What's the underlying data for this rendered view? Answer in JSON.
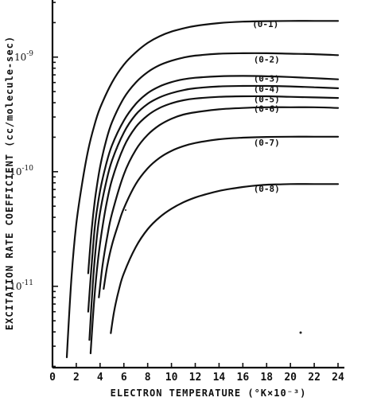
{
  "chart_data": {
    "type": "line",
    "title": "",
    "xlabel": "ELECTRON TEMPERATURE (°K×10⁻³)",
    "ylabel": "EXCITATION RATE COEFFICIENT (cc/molecule-sec)",
    "x_scale": "linear",
    "y_scale": "log",
    "xlim": [
      0,
      24
    ],
    "ylim": [
      1.95e-12,
      3.15e-09
    ],
    "grid": false,
    "x_ticks": [
      0,
      2,
      4,
      6,
      8,
      10,
      12,
      14,
      16,
      18,
      20,
      22,
      24
    ],
    "x_tick_labels": [
      "0",
      "2",
      "4",
      "6",
      "8",
      "10",
      "12",
      "14",
      "16",
      "18",
      "20",
      "22",
      "24"
    ],
    "y_ticks": [
      1e-09,
      1e-10,
      1e-11
    ],
    "y_tick_labels": [
      {
        "base": "10",
        "exp": "-9"
      },
      {
        "base": "10",
        "exp": "-10"
      },
      {
        "base": "10",
        "exp": "-11"
      }
    ],
    "series": [
      {
        "name": "(0-1)",
        "label_at": [
          17.9,
          1.95e-09
        ],
        "points": [
          [
            1.2,
            2.4e-12
          ],
          [
            1.6,
            1.2e-11
          ],
          [
            2,
            3.5e-11
          ],
          [
            2.5,
            8e-11
          ],
          [
            3,
            1.55e-10
          ],
          [
            3.5,
            2.5e-10
          ],
          [
            4,
            3.6e-10
          ],
          [
            5,
            6e-10
          ],
          [
            6,
            8.6e-10
          ],
          [
            7,
            1.1e-09
          ],
          [
            8,
            1.33e-09
          ],
          [
            9,
            1.52e-09
          ],
          [
            10,
            1.67e-09
          ],
          [
            11,
            1.78e-09
          ],
          [
            12,
            1.87e-09
          ],
          [
            14,
            1.98e-09
          ],
          [
            16,
            2.04e-09
          ],
          [
            18,
            2.06e-09
          ],
          [
            20,
            2.07e-09
          ],
          [
            22,
            2.07e-09
          ],
          [
            24,
            2.07e-09
          ]
        ]
      },
      {
        "name": "(0-2)",
        "label_at": [
          18.0,
          9.6e-10
        ],
        "points": [
          [
            3.0,
            1.3e-11
          ],
          [
            3.3,
            3.2e-11
          ],
          [
            3.6,
            6e-11
          ],
          [
            4,
            1.1e-10
          ],
          [
            4.5,
            1.85e-10
          ],
          [
            5,
            2.7e-10
          ],
          [
            6,
            4.4e-10
          ],
          [
            7,
            6e-10
          ],
          [
            8,
            7.4e-10
          ],
          [
            9,
            8.5e-10
          ],
          [
            10,
            9.3e-10
          ],
          [
            11,
            9.9e-10
          ],
          [
            12,
            1.03e-09
          ],
          [
            14,
            1.07e-09
          ],
          [
            16,
            1.08e-09
          ],
          [
            18,
            1.08e-09
          ],
          [
            20,
            1.07e-09
          ],
          [
            22,
            1.06e-09
          ],
          [
            24,
            1.04e-09
          ]
        ]
      },
      {
        "name": "(0-3)",
        "label_at": [
          18.0,
          6.5e-10
        ],
        "points": [
          [
            3.0,
            6e-12
          ],
          [
            3.3,
            1.6e-11
          ],
          [
            3.6,
            3.6e-11
          ],
          [
            4,
            6.8e-11
          ],
          [
            4.5,
            1.15e-10
          ],
          [
            5,
            1.7e-10
          ],
          [
            6,
            2.8e-10
          ],
          [
            7,
            3.9e-10
          ],
          [
            8,
            4.85e-10
          ],
          [
            9,
            5.55e-10
          ],
          [
            10,
            6.05e-10
          ],
          [
            11,
            6.4e-10
          ],
          [
            12,
            6.6e-10
          ],
          [
            14,
            6.8e-10
          ],
          [
            16,
            6.85e-10
          ],
          [
            18,
            6.8e-10
          ],
          [
            20,
            6.7e-10
          ],
          [
            22,
            6.55e-10
          ],
          [
            24,
            6.4e-10
          ]
        ]
      },
      {
        "name": "(0-4)",
        "label_at": [
          18.0,
          5.3e-10
        ],
        "points": [
          [
            3.1,
            3.4e-12
          ],
          [
            3.4,
            1.1e-11
          ],
          [
            3.7,
            2.5e-11
          ],
          [
            4,
            4.4e-11
          ],
          [
            4.5,
            8e-11
          ],
          [
            5,
            1.25e-10
          ],
          [
            6,
            2.2e-10
          ],
          [
            7,
            3.15e-10
          ],
          [
            8,
            3.9e-10
          ],
          [
            9,
            4.45e-10
          ],
          [
            10,
            4.85e-10
          ],
          [
            11,
            5.15e-10
          ],
          [
            12,
            5.35e-10
          ],
          [
            14,
            5.55e-10
          ],
          [
            16,
            5.6e-10
          ],
          [
            18,
            5.6e-10
          ],
          [
            20,
            5.55e-10
          ],
          [
            22,
            5.45e-10
          ],
          [
            24,
            5.35e-10
          ]
        ]
      },
      {
        "name": "(0-5)",
        "label_at": [
          18.0,
          4.3e-10
        ],
        "points": [
          [
            3.2,
            2.6e-12
          ],
          [
            3.5,
            7.5e-12
          ],
          [
            3.8,
            1.6e-11
          ],
          [
            4.1,
            2.8e-11
          ],
          [
            4.5,
            5e-11
          ],
          [
            5,
            8.5e-11
          ],
          [
            6,
            1.65e-10
          ],
          [
            7,
            2.45e-10
          ],
          [
            8,
            3.1e-10
          ],
          [
            9,
            3.6e-10
          ],
          [
            10,
            3.95e-10
          ],
          [
            11,
            4.2e-10
          ],
          [
            12,
            4.35e-10
          ],
          [
            14,
            4.5e-10
          ],
          [
            16,
            4.55e-10
          ],
          [
            18,
            4.55e-10
          ],
          [
            20,
            4.5e-10
          ],
          [
            22,
            4.45e-10
          ],
          [
            24,
            4.4e-10
          ]
        ]
      },
      {
        "name": "(0-6)",
        "label_at": [
          18.0,
          3.55e-10
        ],
        "points": [
          [
            3.9,
            8e-12
          ],
          [
            4.2,
            1.5e-11
          ],
          [
            4.6,
            2.7e-11
          ],
          [
            5,
            4.3e-11
          ],
          [
            6,
            9.5e-11
          ],
          [
            7,
            1.55e-10
          ],
          [
            8,
            2.1e-10
          ],
          [
            9,
            2.55e-10
          ],
          [
            10,
            2.9e-10
          ],
          [
            11,
            3.15e-10
          ],
          [
            12,
            3.3e-10
          ],
          [
            14,
            3.5e-10
          ],
          [
            16,
            3.6e-10
          ],
          [
            18,
            3.65e-10
          ],
          [
            20,
            3.65e-10
          ],
          [
            22,
            3.65e-10
          ],
          [
            24,
            3.6e-10
          ]
        ]
      },
      {
        "name": "(0-7)",
        "label_at": [
          18.0,
          1.8e-10
        ],
        "points": [
          [
            4.3,
            9.5e-12
          ],
          [
            4.6,
            1.5e-11
          ],
          [
            5,
            2.3e-11
          ],
          [
            5.5,
            3.4e-11
          ],
          [
            6,
            4.8e-11
          ],
          [
            7,
            7.8e-11
          ],
          [
            8,
            1.07e-10
          ],
          [
            9,
            1.32e-10
          ],
          [
            10,
            1.52e-10
          ],
          [
            11,
            1.67e-10
          ],
          [
            12,
            1.78e-10
          ],
          [
            14,
            1.92e-10
          ],
          [
            16,
            1.98e-10
          ],
          [
            18,
            2.01e-10
          ],
          [
            20,
            2.02e-10
          ],
          [
            22,
            2.02e-10
          ],
          [
            24,
            2.02e-10
          ]
        ]
      },
      {
        "name": "(0-8)",
        "label_at": [
          18.0,
          7.1e-11
        ],
        "points": [
          [
            4.9,
            3.9e-12
          ],
          [
            5.2,
            6.2e-12
          ],
          [
            5.6,
            9.5e-12
          ],
          [
            6,
            1.3e-11
          ],
          [
            7,
            2.2e-11
          ],
          [
            8,
            3.15e-11
          ],
          [
            9,
            4e-11
          ],
          [
            10,
            4.75e-11
          ],
          [
            11,
            5.4e-11
          ],
          [
            12,
            5.95e-11
          ],
          [
            13,
            6.4e-11
          ],
          [
            14,
            6.8e-11
          ],
          [
            15,
            7.1e-11
          ],
          [
            16,
            7.35e-11
          ],
          [
            17,
            7.55e-11
          ],
          [
            18,
            7.7e-11
          ],
          [
            19,
            7.75e-11
          ],
          [
            20,
            7.8e-11
          ],
          [
            22,
            7.8e-11
          ],
          [
            24,
            7.8e-11
          ]
        ]
      }
    ]
  }
}
